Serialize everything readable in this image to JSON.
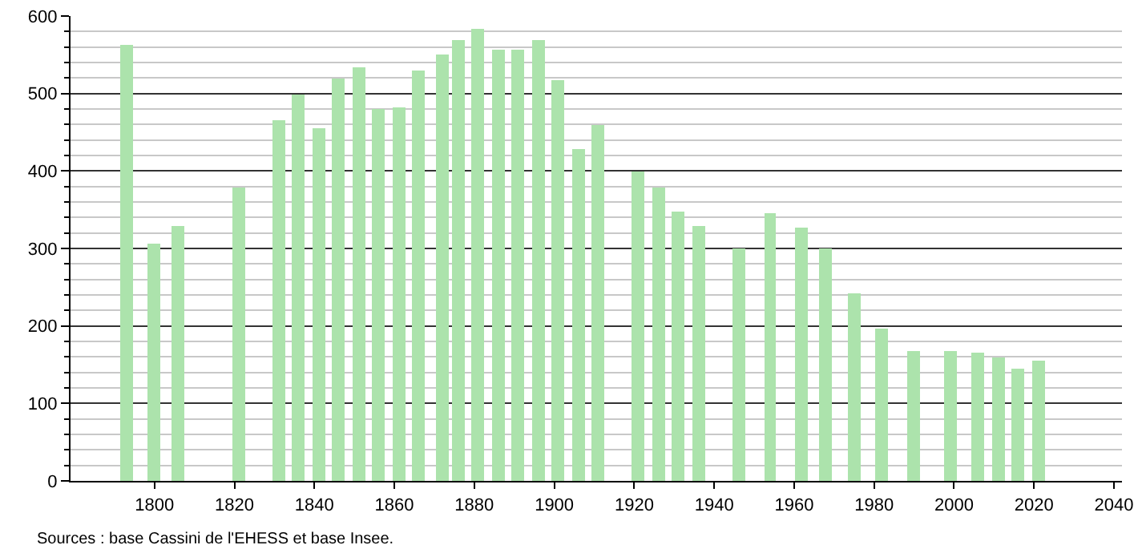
{
  "chart_data": {
    "type": "bar",
    "x": [
      1793,
      1800,
      1806,
      1821,
      1831,
      1836,
      1841,
      1846,
      1851,
      1856,
      1861,
      1866,
      1872,
      1876,
      1881,
      1886,
      1891,
      1896,
      1901,
      1906,
      1911,
      1921,
      1926,
      1931,
      1936,
      1946,
      1954,
      1962,
      1968,
      1975,
      1982,
      1990,
      1999,
      2006,
      2011,
      2016,
      2021
    ],
    "values": [
      563,
      306,
      329,
      379,
      466,
      498,
      456,
      520,
      533,
      480,
      482,
      529,
      551,
      570,
      583,
      556,
      556,
      570,
      518,
      429,
      460,
      400,
      378,
      348,
      328,
      301,
      346,
      326,
      301,
      243,
      197,
      168,
      168,
      166,
      159,
      145,
      155
    ],
    "color": "#ace3ac",
    "xlim": [
      1779,
      2042
    ],
    "xticks": [
      1800,
      1820,
      1840,
      1860,
      1880,
      1900,
      1920,
      1940,
      1960,
      1980,
      2000,
      2020,
      2040
    ],
    "ylim": [
      0,
      600
    ],
    "yticks": [
      0,
      {
        "value": 20,
        "label": null
      },
      {
        "value": 40,
        "label": null
      },
      {
        "value": 60,
        "label": null
      },
      {
        "value": 80,
        "label": null
      },
      100,
      {
        "value": 120,
        "label": null
      },
      {
        "value": 140,
        "label": null
      },
      {
        "value": 160,
        "label": null
      },
      {
        "value": 180,
        "label": null
      },
      200,
      {
        "value": 220,
        "label": null
      },
      {
        "value": 240,
        "label": null
      },
      {
        "value": 260,
        "label": null
      },
      {
        "value": 280,
        "label": null
      },
      300,
      {
        "value": 320,
        "label": null
      },
      {
        "value": 340,
        "label": null
      },
      {
        "value": 360,
        "label": null
      },
      {
        "value": 380,
        "label": null
      },
      400,
      {
        "value": 420,
        "label": null
      },
      {
        "value": 440,
        "label": null
      },
      {
        "value": 460,
        "label": null
      },
      {
        "value": 480,
        "label": null
      },
      500,
      {
        "value": 520,
        "label": null
      },
      {
        "value": 540,
        "label": null
      },
      {
        "value": 560,
        "label": null
      },
      {
        "value": 580,
        "label": null
      },
      600
    ],
    "grid": "y",
    "annotations": [
      "Sources : base Cassini de l'EHESS et base Insee."
    ]
  }
}
